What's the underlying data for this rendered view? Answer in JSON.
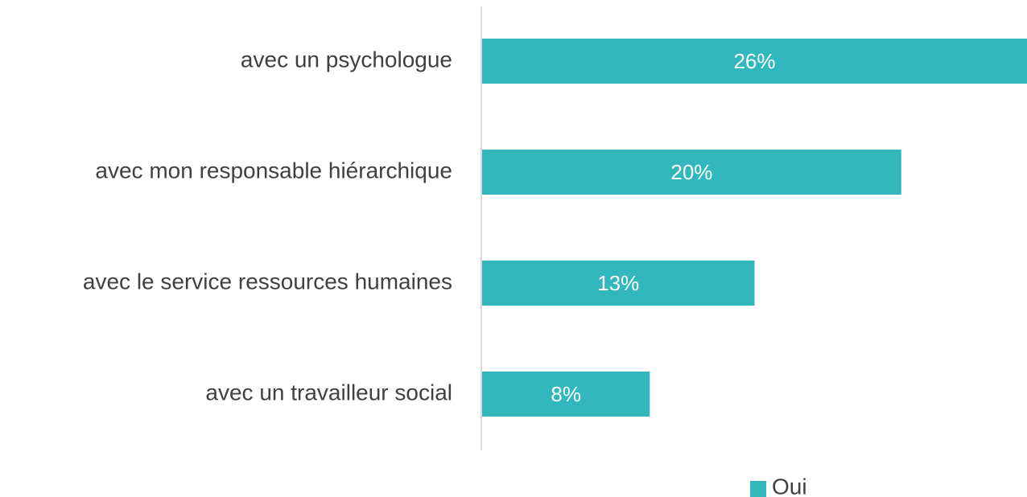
{
  "chart_data": {
    "type": "hbar",
    "categories": [
      "avec un psychologue",
      "avec mon responsable hiérarchique",
      "avec le service ressources humaines",
      "avec un travailleur social"
    ],
    "series": [
      {
        "name": "Oui",
        "color": "#31b7bc",
        "values": [
          26,
          20,
          13,
          8
        ],
        "value_labels": [
          "26%",
          "20%",
          "13%",
          "8%"
        ]
      }
    ],
    "legend": "bottom"
  }
}
